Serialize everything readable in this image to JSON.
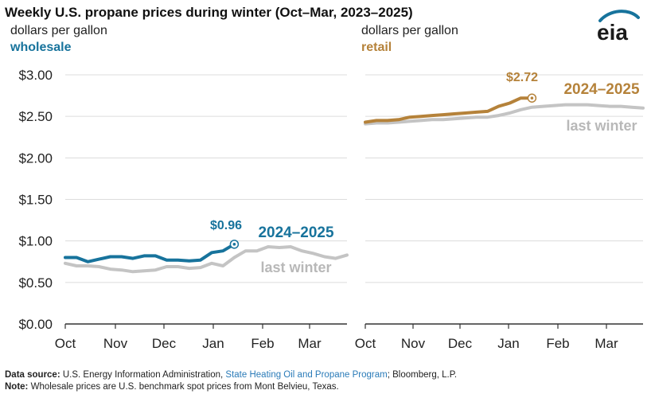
{
  "title": "Weekly U.S. propane prices during winter (Oct–Mar, 2023–2025)",
  "logo_text": "eia",
  "colors": {
    "wholesale": "#17739c",
    "retail": "#b5823a",
    "last_winter": "#c4c4c4",
    "axis": "#333333",
    "grid": "#dcdcdc"
  },
  "footer": {
    "source_label": "Data source:",
    "source_text_1": "U.S. Energy Information Administration,",
    "source_link": "State Heating Oil and Propane Program",
    "source_text_2": "; Bloomberg, L.P.",
    "note_label": "Note:",
    "note_text": "Wholesale prices are U.S. benchmark spot prices from Mont Belvieu, Texas."
  },
  "chart_data": [
    {
      "type": "line",
      "subtitle": "wholesale",
      "ylabel": "dollars per gallon",
      "ylim": [
        0,
        3
      ],
      "yticks": [
        "$0.00",
        "$0.50",
        "$1.00",
        "$1.50",
        "$2.00",
        "$2.50",
        "$3.00"
      ],
      "xticks": [
        "Oct",
        "Nov",
        "Dec",
        "Jan",
        "Feb",
        "Mar"
      ],
      "grid": true,
      "series": [
        {
          "name": "last winter",
          "x": [
            0,
            1,
            2,
            3,
            4,
            5,
            6,
            7,
            8,
            9,
            10,
            11,
            12,
            13,
            14,
            15,
            16,
            17,
            18,
            19,
            20,
            21,
            22,
            23,
            24,
            25
          ],
          "values": [
            0.73,
            0.7,
            0.7,
            0.69,
            0.66,
            0.65,
            0.63,
            0.64,
            0.65,
            0.69,
            0.69,
            0.67,
            0.68,
            0.73,
            0.7,
            0.8,
            0.88,
            0.88,
            0.93,
            0.92,
            0.93,
            0.88,
            0.85,
            0.81,
            0.79,
            0.83
          ]
        },
        {
          "name": "2024–2025",
          "x": [
            0,
            1,
            2,
            3,
            4,
            5,
            6,
            7,
            8,
            9,
            10,
            11,
            12,
            13,
            14,
            15
          ],
          "values": [
            0.8,
            0.8,
            0.75,
            0.78,
            0.81,
            0.81,
            0.79,
            0.82,
            0.82,
            0.77,
            0.77,
            0.76,
            0.77,
            0.86,
            0.88,
            0.96
          ]
        }
      ],
      "endpoint_label": "$0.96"
    },
    {
      "type": "line",
      "subtitle": "retail",
      "ylabel": "dollars per gallon",
      "ylim": [
        0,
        3
      ],
      "xticks": [
        "Oct",
        "Nov",
        "Dec",
        "Jan",
        "Feb",
        "Mar"
      ],
      "grid": true,
      "series": [
        {
          "name": "last winter",
          "x": [
            0,
            1,
            2,
            3,
            4,
            5,
            6,
            7,
            8,
            9,
            10,
            11,
            12,
            13,
            14,
            15,
            16,
            17,
            18,
            19,
            20,
            21,
            22,
            23,
            24,
            25
          ],
          "values": [
            2.41,
            2.42,
            2.42,
            2.43,
            2.44,
            2.45,
            2.46,
            2.46,
            2.47,
            2.48,
            2.49,
            2.49,
            2.51,
            2.54,
            2.58,
            2.61,
            2.62,
            2.63,
            2.64,
            2.64,
            2.64,
            2.63,
            2.62,
            2.62,
            2.61,
            2.6
          ]
        },
        {
          "name": "2024–2025",
          "x": [
            0,
            1,
            2,
            3,
            4,
            5,
            6,
            7,
            8,
            9,
            10,
            11,
            12,
            13,
            14,
            15
          ],
          "values": [
            2.43,
            2.45,
            2.45,
            2.46,
            2.49,
            2.5,
            2.51,
            2.52,
            2.53,
            2.54,
            2.55,
            2.56,
            2.62,
            2.66,
            2.72,
            2.72
          ]
        }
      ],
      "endpoint_label": "$2.72"
    }
  ]
}
